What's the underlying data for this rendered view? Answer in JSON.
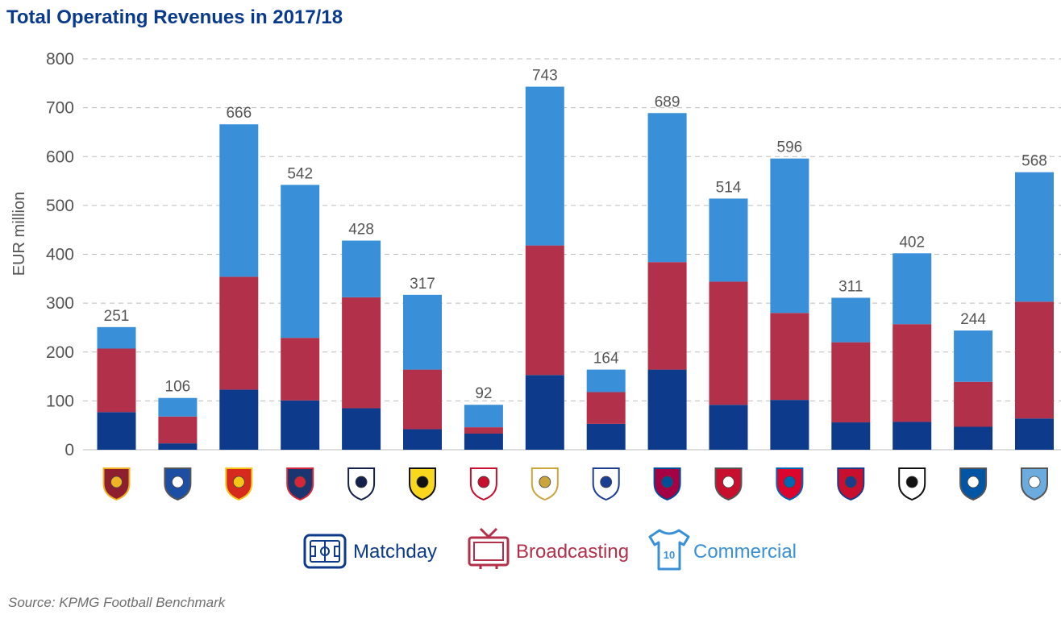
{
  "title": "Total Operating Revenues in 2017/18",
  "source": "Source: KPMG Football Benchmark",
  "chart_data": {
    "type": "bar",
    "stacked": true,
    "title": "Total Operating Revenues in 2017/18",
    "ylabel": "EUR million",
    "ylim": [
      0,
      800
    ],
    "yticks": [
      "0",
      "100",
      "200",
      "300",
      "400",
      "500",
      "600",
      "700",
      "800"
    ],
    "grid": true,
    "categories": [
      "AS Roma",
      "FC Porto",
      "Manchester United",
      "Paris Saint-Germain",
      "Tottenham Hotspur",
      "Borussia Dortmund",
      "AFC Ajax",
      "Real Madrid",
      "Olympique Lyonnais",
      "FC Barcelona",
      "Liverpool FC",
      "FC Bayern München",
      "Atlético de Madrid",
      "Juventus",
      "FC Schalke 04",
      "Manchester City"
    ],
    "category_icons": [
      "roma-crest-icon",
      "porto-crest-icon",
      "man-united-crest-icon",
      "psg-crest-icon",
      "tottenham-crest-icon",
      "dortmund-crest-icon",
      "ajax-crest-icon",
      "real-madrid-crest-icon",
      "lyon-crest-icon",
      "barcelona-crest-icon",
      "liverpool-crest-icon",
      "bayern-crest-icon",
      "atletico-crest-icon",
      "juventus-crest-icon",
      "schalke-crest-icon",
      "man-city-crest-icon"
    ],
    "totals": [
      251,
      106,
      666,
      542,
      428,
      317,
      92,
      743,
      164,
      689,
      514,
      596,
      311,
      402,
      244,
      568
    ],
    "series": [
      {
        "name": "Matchday",
        "color": "#0d3a8a",
        "icon": "stadium-icon",
        "values": [
          77,
          13,
          123,
          101,
          85,
          42,
          33,
          153,
          53,
          164,
          92,
          102,
          56,
          57,
          47,
          64
        ]
      },
      {
        "name": "Broadcasting",
        "color": "#b3304b",
        "icon": "television-icon",
        "values": [
          130,
          55,
          231,
          128,
          227,
          122,
          13,
          265,
          65,
          220,
          252,
          178,
          164,
          200,
          92,
          239
        ]
      },
      {
        "name": "Commercial",
        "color": "#3990d8",
        "icon": "jersey-icon",
        "values": [
          44,
          38,
          312,
          313,
          116,
          153,
          46,
          325,
          46,
          305,
          170,
          316,
          91,
          145,
          105,
          265
        ]
      }
    ],
    "legend": "bottom-center"
  }
}
